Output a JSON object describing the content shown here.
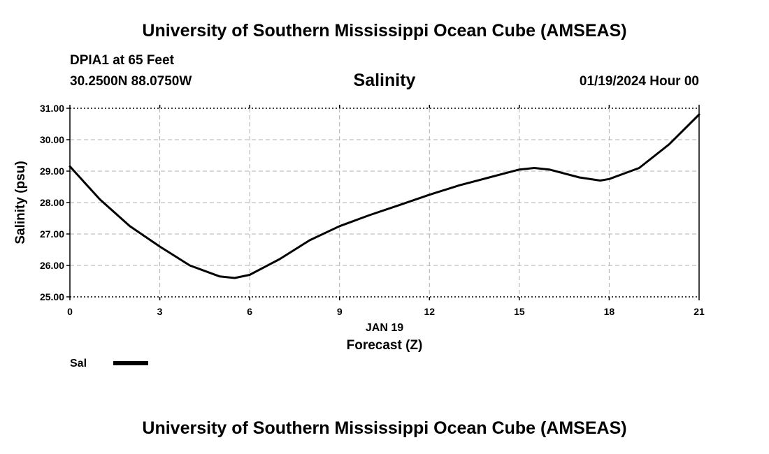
{
  "header": {
    "title": "University of Southern Mississippi Ocean Cube (AMSEAS)",
    "station": "DPIA1 at 65 Feet",
    "coords": "30.2500N  88.0750W",
    "subtitle": "Salinity",
    "datetime": "01/19/2024 Hour 00"
  },
  "footer": {
    "title": "University of Southern Mississippi Ocean Cube (AMSEAS)"
  },
  "chart_data": {
    "type": "line",
    "title": "Salinity",
    "xlabel": "Forecast (Z)",
    "xdate_label": "JAN 19",
    "ylabel": "Salinity (psu)",
    "xlim": [
      0,
      21
    ],
    "ylim": [
      25,
      31
    ],
    "x_ticks": [
      0,
      3,
      6,
      9,
      12,
      15,
      18,
      21
    ],
    "x_tick_labels": [
      "0",
      "3",
      "6",
      "9",
      "12",
      "15",
      "18",
      "21"
    ],
    "y_ticks": [
      25,
      26,
      27,
      28,
      29,
      30,
      31
    ],
    "y_tick_labels": [
      "25.00",
      "26.00",
      "27.00",
      "28.00",
      "29.00",
      "30.00",
      "31.00"
    ],
    "grid": true,
    "legend_position": "bottom-left",
    "series": [
      {
        "name": "Sal",
        "color": "#000000",
        "x": [
          0,
          1,
          2,
          3,
          4,
          5,
          5.5,
          6,
          7,
          8,
          9,
          10,
          11,
          12,
          13,
          14,
          15,
          15.5,
          16,
          17,
          17.7,
          18,
          19,
          20,
          21
        ],
        "values": [
          29.15,
          28.1,
          27.25,
          26.6,
          26.0,
          25.65,
          25.6,
          25.7,
          26.2,
          26.8,
          27.25,
          27.6,
          27.92,
          28.25,
          28.55,
          28.8,
          29.05,
          29.1,
          29.05,
          28.8,
          28.7,
          28.75,
          29.1,
          29.85,
          30.8
        ]
      }
    ]
  }
}
